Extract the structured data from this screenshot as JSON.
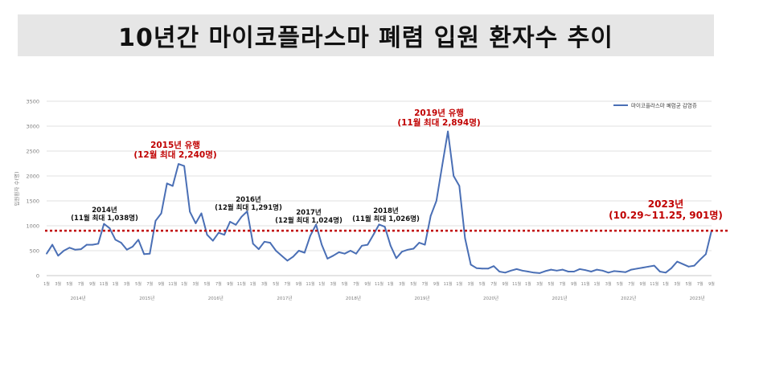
{
  "header": {
    "title": "10년간 마이코플라스마 폐렴 입원 환자수 추이"
  },
  "colors": {
    "line": "#4a6fb5",
    "annotation": "#c00000",
    "threshold": "#c00000",
    "grid": "#d9d9d9",
    "axis_text": "#7f7f7f",
    "label_text": "#111111"
  },
  "chart_data": {
    "type": "line",
    "title": "10년간 마이코플라스마 폐렴 입원 환자수 추이",
    "ylabel": "입원환자 수(명)",
    "xlabel": "",
    "ylim": [
      0,
      3500
    ],
    "yticks": [
      "0",
      "500",
      "1000",
      "1500",
      "2000",
      "2500",
      "3000",
      "3500"
    ],
    "legend": {
      "position": "top-right",
      "label": "마이코플라스마 폐렴균 감염증"
    },
    "threshold": 901,
    "grid": true,
    "month_tick_labels": [
      "1월",
      "3월",
      "5월",
      "7월",
      "9월",
      "11월"
    ],
    "years": [
      "2014년",
      "2015년",
      "2016년",
      "2017년",
      "2018년",
      "2019년",
      "2020년",
      "2021년",
      "2022년",
      "2023년"
    ],
    "series": [
      {
        "name": "마이코플라스마 폐렴균 감염증",
        "values": [
          440,
          620,
          400,
          500,
          560,
          520,
          530,
          620,
          620,
          640,
          1038,
          950,
          720,
          660,
          520,
          580,
          720,
          430,
          440,
          1100,
          1250,
          1850,
          1800,
          2240,
          2200,
          1280,
          1050,
          1250,
          820,
          700,
          860,
          820,
          1080,
          1020,
          1180,
          1291,
          640,
          530,
          680,
          660,
          500,
          400,
          300,
          380,
          500,
          460,
          800,
          1024,
          620,
          340,
          400,
          470,
          440,
          500,
          440,
          600,
          620,
          820,
          1026,
          980,
          600,
          350,
          480,
          520,
          540,
          660,
          620,
          1200,
          1500,
          2200,
          2894,
          2000,
          1800,
          750,
          220,
          150,
          140,
          140,
          190,
          80,
          60,
          100,
          130,
          100,
          80,
          60,
          50,
          90,
          120,
          100,
          120,
          80,
          80,
          130,
          110,
          80,
          120,
          100,
          60,
          90,
          80,
          70,
          120,
          140,
          160,
          180,
          200,
          80,
          60,
          150,
          280,
          230,
          180,
          200,
          320,
          430,
          901
        ]
      }
    ],
    "annotations": [
      {
        "lines": [
          "2014년",
          "(11월 최대 1,038명)"
        ],
        "style": "black"
      },
      {
        "lines": [
          "2015년 유행",
          "(12월 최대 2,240명)"
        ],
        "style": "red"
      },
      {
        "lines": [
          "2016년",
          "(12월 최대 1,291명)"
        ],
        "style": "black"
      },
      {
        "lines": [
          "2017년",
          "(12월 최대 1,024명)"
        ],
        "style": "black"
      },
      {
        "lines": [
          "2018년",
          "(11월 최대 1,026명)"
        ],
        "style": "black"
      },
      {
        "lines": [
          "2019년 유행",
          "(11월 최대 2,894명)"
        ],
        "style": "red"
      },
      {
        "lines": [
          "2023년",
          "(10.29~11.25, 901명)"
        ],
        "style": "red-large"
      }
    ]
  }
}
